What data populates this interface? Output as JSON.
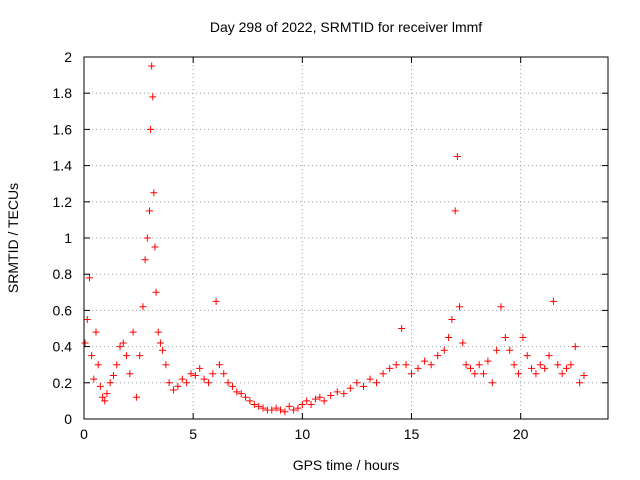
{
  "chart_data": {
    "type": "scatter",
    "title": "Day 298 of 2022, SRMTID for receiver lmmf",
    "xlabel": "GPS time / hours",
    "ylabel": "SRMTID / TECUs",
    "xlim": [
      0,
      24
    ],
    "ylim": [
      0,
      2
    ],
    "x_ticks": [
      0,
      5,
      10,
      15,
      20
    ],
    "x_tick_labels": [
      "0",
      "5",
      "10",
      "15",
      "20"
    ],
    "y_ticks": [
      0,
      0.2,
      0.4,
      0.6,
      0.8,
      1,
      1.2,
      1.4,
      1.6,
      1.8,
      2
    ],
    "y_tick_labels": [
      "0",
      "0.2",
      "0.4",
      "0.6",
      "0.8",
      "1",
      "1.2",
      "1.4",
      "1.6",
      "1.8",
      "2"
    ],
    "grid": true,
    "marker": "+",
    "series": [
      {
        "name": "SRMTID",
        "color": "#ff0000",
        "x": [
          0.05,
          0.15,
          0.25,
          0.35,
          0.45,
          0.55,
          0.65,
          0.75,
          0.85,
          0.95,
          1.05,
          1.2,
          1.35,
          1.5,
          1.65,
          1.8,
          1.95,
          2.1,
          2.25,
          2.4,
          2.55,
          2.7,
          2.8,
          2.9,
          3.0,
          3.05,
          3.1,
          3.15,
          3.2,
          3.25,
          3.3,
          3.4,
          3.5,
          3.6,
          3.75,
          3.9,
          4.1,
          4.3,
          4.5,
          4.7,
          4.9,
          5.1,
          5.3,
          5.5,
          5.7,
          5.9,
          6.05,
          6.2,
          6.4,
          6.6,
          6.8,
          7.0,
          7.2,
          7.4,
          7.6,
          7.8,
          8.0,
          8.2,
          8.4,
          8.6,
          8.8,
          9.0,
          9.2,
          9.4,
          9.6,
          9.8,
          10.0,
          10.2,
          10.4,
          10.6,
          10.8,
          11.0,
          11.3,
          11.6,
          11.9,
          12.2,
          12.5,
          12.8,
          13.1,
          13.4,
          13.7,
          14.0,
          14.3,
          14.55,
          14.75,
          15.0,
          15.3,
          15.6,
          15.9,
          16.2,
          16.5,
          16.7,
          16.85,
          17.0,
          17.1,
          17.2,
          17.35,
          17.5,
          17.7,
          17.9,
          18.1,
          18.3,
          18.5,
          18.7,
          18.9,
          19.1,
          19.3,
          19.5,
          19.7,
          19.9,
          20.1,
          20.3,
          20.5,
          20.7,
          20.9,
          21.1,
          21.3,
          21.5,
          21.7,
          21.9,
          22.1,
          22.3,
          22.5,
          22.7,
          22.9
        ],
        "y": [
          0.42,
          0.55,
          0.78,
          0.35,
          0.22,
          0.48,
          0.3,
          0.18,
          0.12,
          0.1,
          0.14,
          0.2,
          0.24,
          0.3,
          0.4,
          0.42,
          0.35,
          0.25,
          0.48,
          0.12,
          0.35,
          0.62,
          0.88,
          1.0,
          1.15,
          1.6,
          1.95,
          1.78,
          1.25,
          0.95,
          0.7,
          0.48,
          0.42,
          0.38,
          0.3,
          0.2,
          0.16,
          0.18,
          0.22,
          0.2,
          0.25,
          0.24,
          0.28,
          0.22,
          0.2,
          0.25,
          0.65,
          0.3,
          0.25,
          0.2,
          0.18,
          0.15,
          0.14,
          0.12,
          0.1,
          0.08,
          0.07,
          0.06,
          0.05,
          0.05,
          0.06,
          0.05,
          0.04,
          0.07,
          0.05,
          0.06,
          0.08,
          0.1,
          0.08,
          0.11,
          0.12,
          0.1,
          0.13,
          0.15,
          0.14,
          0.17,
          0.2,
          0.18,
          0.22,
          0.2,
          0.25,
          0.28,
          0.3,
          0.5,
          0.3,
          0.25,
          0.28,
          0.32,
          0.3,
          0.35,
          0.38,
          0.45,
          0.55,
          1.15,
          1.45,
          0.62,
          0.42,
          0.3,
          0.28,
          0.25,
          0.3,
          0.25,
          0.32,
          0.2,
          0.38,
          0.62,
          0.45,
          0.38,
          0.3,
          0.25,
          0.45,
          0.35,
          0.28,
          0.25,
          0.3,
          0.28,
          0.35,
          0.65,
          0.3,
          0.25,
          0.28,
          0.3,
          0.4,
          0.2,
          0.24
        ]
      }
    ]
  }
}
